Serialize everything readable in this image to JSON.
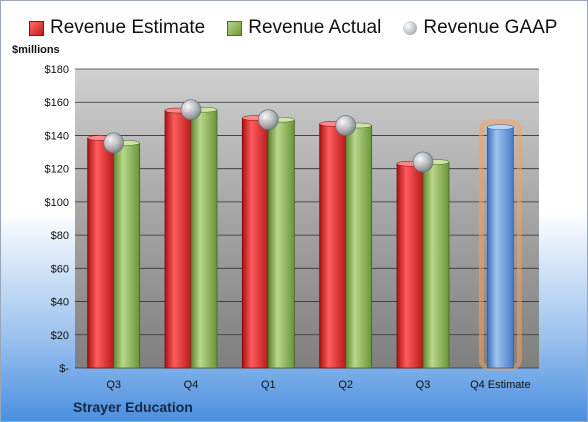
{
  "chart_data": {
    "type": "bar",
    "categories": [
      "Q3",
      "Q4",
      "Q1",
      "Q2",
      "Q3",
      "Q4 Estimate"
    ],
    "series": [
      {
        "name": "Revenue Estimate",
        "color": "#d42525",
        "values": [
          138.5,
          155,
          150.5,
          147,
          123,
          null
        ]
      },
      {
        "name": "Revenue Actual",
        "color": "#8db356",
        "values": [
          135.5,
          155.5,
          149.5,
          146,
          124,
          null
        ]
      },
      {
        "name": "Revenue GAAP",
        "color": "#b9bec6",
        "values": [
          135.5,
          155.5,
          149.5,
          146,
          124,
          null
        ]
      }
    ],
    "forecast": {
      "category": "Q4 Estimate",
      "value": 145,
      "color": "#6a9ad6",
      "glow": "#f5a15a"
    },
    "title": "",
    "ylabel": "$millions",
    "xlabel": "",
    "ylim": [
      0,
      180
    ],
    "yticks": [
      "$-",
      "$20",
      "$40",
      "$60",
      "$80",
      "$100",
      "$120",
      "$140",
      "$160",
      "$180"
    ],
    "grid": true,
    "legend_position": "top"
  },
  "legend": {
    "estimate": "Revenue Estimate",
    "actual": "Revenue Actual",
    "gaap": "Revenue GAAP"
  },
  "units_label": "$millions",
  "company": "Strayer Education"
}
